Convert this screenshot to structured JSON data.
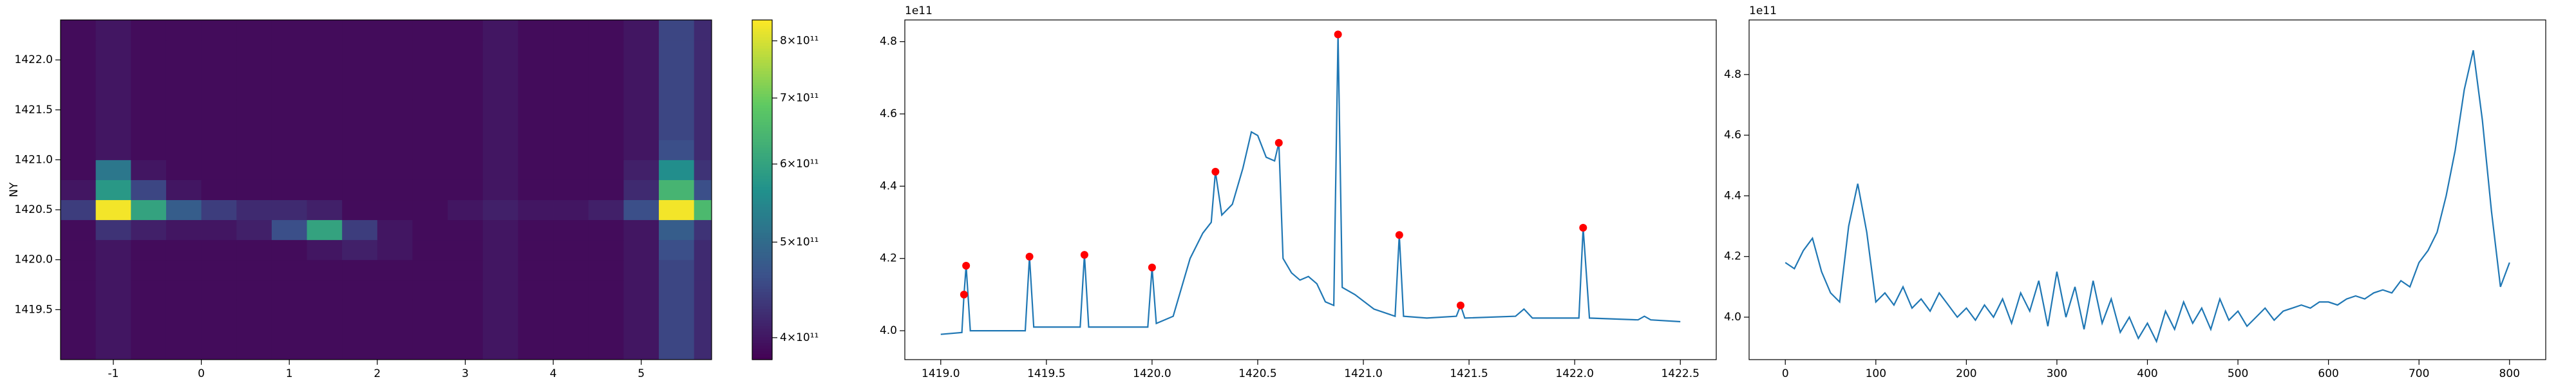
{
  "chart_data": [
    {
      "type": "heatmap",
      "ylabel": "NY",
      "x": [
        -1.4,
        -1.0,
        -0.6,
        -0.2,
        0.2,
        0.6,
        1.0,
        1.4,
        1.8,
        2.2,
        2.6,
        3.0,
        3.4,
        3.8,
        4.2,
        4.6,
        5.0,
        5.4,
        5.8
      ],
      "y": [
        1419.1,
        1419.3,
        1419.5,
        1419.7,
        1419.9,
        1420.1,
        1420.3,
        1420.5,
        1420.7,
        1420.9,
        1421.1,
        1421.3,
        1421.5,
        1421.7,
        1421.9,
        1422.1,
        1422.3
      ],
      "z": [
        [
          390000000000.0,
          400000000000.0,
          390000000000.0,
          390000000000.0,
          390000000000.0,
          390000000000.0,
          390000000000.0,
          390000000000.0,
          390000000000.0,
          390000000000.0,
          390000000000.0,
          390000000000.0,
          400000000000.0,
          390000000000.0,
          390000000000.0,
          390000000000.0,
          400000000000.0,
          450000000000.0,
          420000000000.0
        ],
        [
          390000000000.0,
          400000000000.0,
          390000000000.0,
          390000000000.0,
          390000000000.0,
          390000000000.0,
          390000000000.0,
          390000000000.0,
          390000000000.0,
          390000000000.0,
          390000000000.0,
          390000000000.0,
          400000000000.0,
          390000000000.0,
          390000000000.0,
          390000000000.0,
          400000000000.0,
          450000000000.0,
          420000000000.0
        ],
        [
          390000000000.0,
          400000000000.0,
          390000000000.0,
          390000000000.0,
          390000000000.0,
          390000000000.0,
          390000000000.0,
          390000000000.0,
          390000000000.0,
          390000000000.0,
          390000000000.0,
          390000000000.0,
          400000000000.0,
          390000000000.0,
          390000000000.0,
          390000000000.0,
          400000000000.0,
          450000000000.0,
          420000000000.0
        ],
        [
          390000000000.0,
          400000000000.0,
          390000000000.0,
          390000000000.0,
          390000000000.0,
          390000000000.0,
          390000000000.0,
          390000000000.0,
          390000000000.0,
          390000000000.0,
          390000000000.0,
          390000000000.0,
          400000000000.0,
          390000000000.0,
          390000000000.0,
          390000000000.0,
          400000000000.0,
          450000000000.0,
          420000000000.0
        ],
        [
          390000000000.0,
          400000000000.0,
          390000000000.0,
          390000000000.0,
          390000000000.0,
          390000000000.0,
          390000000000.0,
          390000000000.0,
          390000000000.0,
          390000000000.0,
          390000000000.0,
          390000000000.0,
          400000000000.0,
          390000000000.0,
          390000000000.0,
          390000000000.0,
          400000000000.0,
          450000000000.0,
          420000000000.0
        ],
        [
          390000000000.0,
          400000000000.0,
          390000000000.0,
          390000000000.0,
          390000000000.0,
          390000000000.0,
          390000000000.0,
          400000000000.0,
          410000000000.0,
          400000000000.0,
          390000000000.0,
          390000000000.0,
          400000000000.0,
          390000000000.0,
          390000000000.0,
          390000000000.0,
          400000000000.0,
          460000000000.0,
          420000000000.0
        ],
        [
          390000000000.0,
          430000000000.0,
          410000000000.0,
          400000000000.0,
          400000000000.0,
          410000000000.0,
          460000000000.0,
          600000000000.0,
          440000000000.0,
          400000000000.0,
          390000000000.0,
          390000000000.0,
          400000000000.0,
          390000000000.0,
          390000000000.0,
          390000000000.0,
          400000000000.0,
          480000000000.0,
          430000000000.0
        ],
        [
          440000000000.0,
          830000000000.0,
          600000000000.0,
          480000000000.0,
          440000000000.0,
          420000000000.0,
          420000000000.0,
          410000000000.0,
          390000000000.0,
          390000000000.0,
          390000000000.0,
          400000000000.0,
          410000000000.0,
          400000000000.0,
          400000000000.0,
          410000000000.0,
          460000000000.0,
          830000000000.0,
          650000000000.0
        ],
        [
          400000000000.0,
          580000000000.0,
          450000000000.0,
          400000000000.0,
          390000000000.0,
          390000000000.0,
          390000000000.0,
          390000000000.0,
          390000000000.0,
          390000000000.0,
          390000000000.0,
          390000000000.0,
          400000000000.0,
          390000000000.0,
          390000000000.0,
          390000000000.0,
          420000000000.0,
          640000000000.0,
          460000000000.0
        ],
        [
          390000000000.0,
          520000000000.0,
          400000000000.0,
          390000000000.0,
          390000000000.0,
          390000000000.0,
          390000000000.0,
          390000000000.0,
          390000000000.0,
          390000000000.0,
          390000000000.0,
          390000000000.0,
          400000000000.0,
          390000000000.0,
          390000000000.0,
          390000000000.0,
          410000000000.0,
          560000000000.0,
          430000000000.0
        ],
        [
          390000000000.0,
          400000000000.0,
          390000000000.0,
          390000000000.0,
          390000000000.0,
          390000000000.0,
          390000000000.0,
          390000000000.0,
          390000000000.0,
          390000000000.0,
          390000000000.0,
          390000000000.0,
          400000000000.0,
          390000000000.0,
          390000000000.0,
          390000000000.0,
          400000000000.0,
          460000000000.0,
          420000000000.0
        ],
        [
          390000000000.0,
          400000000000.0,
          390000000000.0,
          390000000000.0,
          390000000000.0,
          390000000000.0,
          390000000000.0,
          390000000000.0,
          390000000000.0,
          390000000000.0,
          390000000000.0,
          390000000000.0,
          400000000000.0,
          390000000000.0,
          390000000000.0,
          390000000000.0,
          400000000000.0,
          450000000000.0,
          420000000000.0
        ],
        [
          390000000000.0,
          400000000000.0,
          390000000000.0,
          390000000000.0,
          390000000000.0,
          390000000000.0,
          390000000000.0,
          390000000000.0,
          390000000000.0,
          390000000000.0,
          390000000000.0,
          390000000000.0,
          400000000000.0,
          390000000000.0,
          390000000000.0,
          390000000000.0,
          400000000000.0,
          450000000000.0,
          420000000000.0
        ],
        [
          390000000000.0,
          400000000000.0,
          390000000000.0,
          390000000000.0,
          390000000000.0,
          390000000000.0,
          390000000000.0,
          390000000000.0,
          390000000000.0,
          390000000000.0,
          390000000000.0,
          390000000000.0,
          400000000000.0,
          390000000000.0,
          390000000000.0,
          390000000000.0,
          400000000000.0,
          450000000000.0,
          420000000000.0
        ],
        [
          390000000000.0,
          400000000000.0,
          390000000000.0,
          390000000000.0,
          390000000000.0,
          390000000000.0,
          390000000000.0,
          390000000000.0,
          390000000000.0,
          390000000000.0,
          390000000000.0,
          390000000000.0,
          400000000000.0,
          390000000000.0,
          390000000000.0,
          390000000000.0,
          400000000000.0,
          450000000000.0,
          420000000000.0
        ],
        [
          390000000000.0,
          400000000000.0,
          390000000000.0,
          390000000000.0,
          390000000000.0,
          390000000000.0,
          390000000000.0,
          390000000000.0,
          390000000000.0,
          390000000000.0,
          390000000000.0,
          390000000000.0,
          400000000000.0,
          390000000000.0,
          390000000000.0,
          390000000000.0,
          400000000000.0,
          450000000000.0,
          420000000000.0
        ],
        [
          390000000000.0,
          400000000000.0,
          390000000000.0,
          390000000000.0,
          390000000000.0,
          390000000000.0,
          390000000000.0,
          390000000000.0,
          390000000000.0,
          390000000000.0,
          390000000000.0,
          390000000000.0,
          400000000000.0,
          390000000000.0,
          390000000000.0,
          390000000000.0,
          400000000000.0,
          450000000000.0,
          420000000000.0
        ]
      ],
      "xlim": [
        -1.6,
        5.8
      ],
      "ylim": [
        1419.0,
        1422.4
      ],
      "xticks": [
        -1,
        0,
        1,
        2,
        3,
        4,
        5
      ],
      "yticks": [
        1419.5,
        {
          "value": 1420,
          "label": "1420.0"
        },
        1420.5,
        {
          "value": 1421,
          "label": "1421.0"
        },
        1421.5,
        {
          "value": 1422,
          "label": "1422.0"
        }
      ],
      "colorbar": {
        "colormap": "viridis",
        "log": true,
        "lim": [
          380000000000.0,
          840000000000.0
        ],
        "ticks": [
          {
            "value": 400000000000.0,
            "label": "4×10¹¹"
          },
          {
            "value": 500000000000.0,
            "label": "5×10¹¹"
          },
          {
            "value": 600000000000.0,
            "label": "6×10¹¹"
          },
          {
            "value": 700000000000.0,
            "label": "7×10¹¹"
          },
          {
            "value": 800000000000.0,
            "label": "8×10¹¹"
          }
        ]
      }
    },
    {
      "type": "line",
      "y_offset_label": "1e11",
      "series": [
        {
          "color": "#1f77b4",
          "x": [
            1419.0,
            1419.1,
            1419.11,
            1419.12,
            1419.14,
            1419.4,
            1419.42,
            1419.44,
            1419.66,
            1419.68,
            1419.7,
            1419.98,
            1420.0,
            1420.02,
            1420.1,
            1420.18,
            1420.24,
            1420.28,
            1420.3,
            1420.33,
            1420.38,
            1420.43,
            1420.47,
            1420.5,
            1420.54,
            1420.58,
            1420.6,
            1420.62,
            1420.66,
            1420.7,
            1420.74,
            1420.78,
            1420.82,
            1420.86,
            1420.88,
            1420.9,
            1420.96,
            1421.05,
            1421.15,
            1421.17,
            1421.19,
            1421.3,
            1421.44,
            1421.46,
            1421.48,
            1421.72,
            1421.76,
            1421.8,
            1422.02,
            1422.04,
            1422.07,
            1422.3,
            1422.33,
            1422.36,
            1422.5
          ],
          "values": [
            3.99,
            3.995,
            4.1,
            4.18,
            4.0,
            4.0,
            4.205,
            4.01,
            4.01,
            4.21,
            4.01,
            4.01,
            4.175,
            4.02,
            4.04,
            4.2,
            4.27,
            4.3,
            4.44,
            4.32,
            4.35,
            4.45,
            4.55,
            4.54,
            4.48,
            4.47,
            4.52,
            4.2,
            4.16,
            4.14,
            4.15,
            4.13,
            4.08,
            4.07,
            4.82,
            4.12,
            4.1,
            4.06,
            4.04,
            4.265,
            4.04,
            4.035,
            4.04,
            4.07,
            4.035,
            4.04,
            4.06,
            4.035,
            4.035,
            4.285,
            4.035,
            4.03,
            4.04,
            4.03,
            4.025
          ]
        },
        {
          "color": "red",
          "marker": "o",
          "linestyle": "none",
          "x": [
            1419.11,
            1419.12,
            1419.42,
            1419.68,
            1420.0,
            1420.3,
            1420.6,
            1420.88,
            1421.17,
            1421.46,
            1422.04
          ],
          "values": [
            4.1,
            4.18,
            4.205,
            4.21,
            4.175,
            4.44,
            4.52,
            4.82,
            4.265,
            4.07,
            4.285
          ]
        }
      ],
      "xlim": [
        1418.83,
        1422.67
      ],
      "ylim": [
        3.92,
        4.86
      ],
      "xticks": [
        {
          "value": 1419,
          "label": "1419.0"
        },
        1419.5,
        {
          "value": 1420,
          "label": "1420.0"
        },
        1420.5,
        {
          "value": 1421,
          "label": "1421.0"
        },
        1421.5,
        {
          "value": 1422,
          "label": "1422.0"
        },
        1422.5
      ],
      "yticks": [
        {
          "value": 4,
          "label": "4.0"
        },
        4.2,
        4.4,
        4.6,
        4.8
      ]
    },
    {
      "type": "line",
      "y_offset_label": "1e11",
      "series": [
        {
          "color": "#1f77b4",
          "x": [
            0,
            10,
            20,
            30,
            40,
            50,
            60,
            70,
            80,
            90,
            100,
            110,
            120,
            130,
            140,
            150,
            160,
            170,
            180,
            190,
            200,
            210,
            220,
            230,
            240,
            250,
            260,
            270,
            280,
            290,
            300,
            310,
            320,
            330,
            340,
            350,
            360,
            370,
            380,
            390,
            400,
            410,
            420,
            430,
            440,
            450,
            460,
            470,
            480,
            490,
            500,
            510,
            520,
            530,
            540,
            550,
            560,
            570,
            580,
            590,
            600,
            610,
            620,
            630,
            640,
            650,
            660,
            670,
            680,
            690,
            700,
            710,
            720,
            730,
            740,
            750,
            760,
            770,
            780,
            790,
            800
          ],
          "values": [
            4.18,
            4.16,
            4.22,
            4.26,
            4.15,
            4.08,
            4.05,
            4.3,
            4.44,
            4.28,
            4.05,
            4.08,
            4.04,
            4.1,
            4.03,
            4.06,
            4.02,
            4.08,
            4.04,
            4.0,
            4.03,
            3.99,
            4.04,
            4.0,
            4.06,
            3.98,
            4.08,
            4.02,
            4.12,
            3.97,
            4.15,
            4.0,
            4.1,
            3.96,
            4.12,
            3.98,
            4.06,
            3.95,
            4.0,
            3.93,
            3.98,
            3.92,
            4.02,
            3.96,
            4.05,
            3.98,
            4.03,
            3.96,
            4.06,
            3.99,
            4.02,
            3.97,
            4.0,
            4.03,
            3.99,
            4.02,
            4.03,
            4.04,
            4.03,
            4.05,
            4.05,
            4.04,
            4.06,
            4.07,
            4.06,
            4.08,
            4.09,
            4.08,
            4.12,
            4.1,
            4.18,
            4.22,
            4.28,
            4.4,
            4.55,
            4.75,
            4.88,
            4.65,
            4.35,
            4.1,
            4.18
          ]
        }
      ],
      "xlim": [
        -40,
        840
      ],
      "ylim": [
        3.86,
        4.98
      ],
      "xticks": [
        0,
        100,
        200,
        300,
        400,
        500,
        600,
        700,
        800
      ],
      "yticks": [
        {
          "value": 4,
          "label": "4.0"
        },
        4.2,
        4.4,
        4.6,
        4.8
      ]
    }
  ]
}
